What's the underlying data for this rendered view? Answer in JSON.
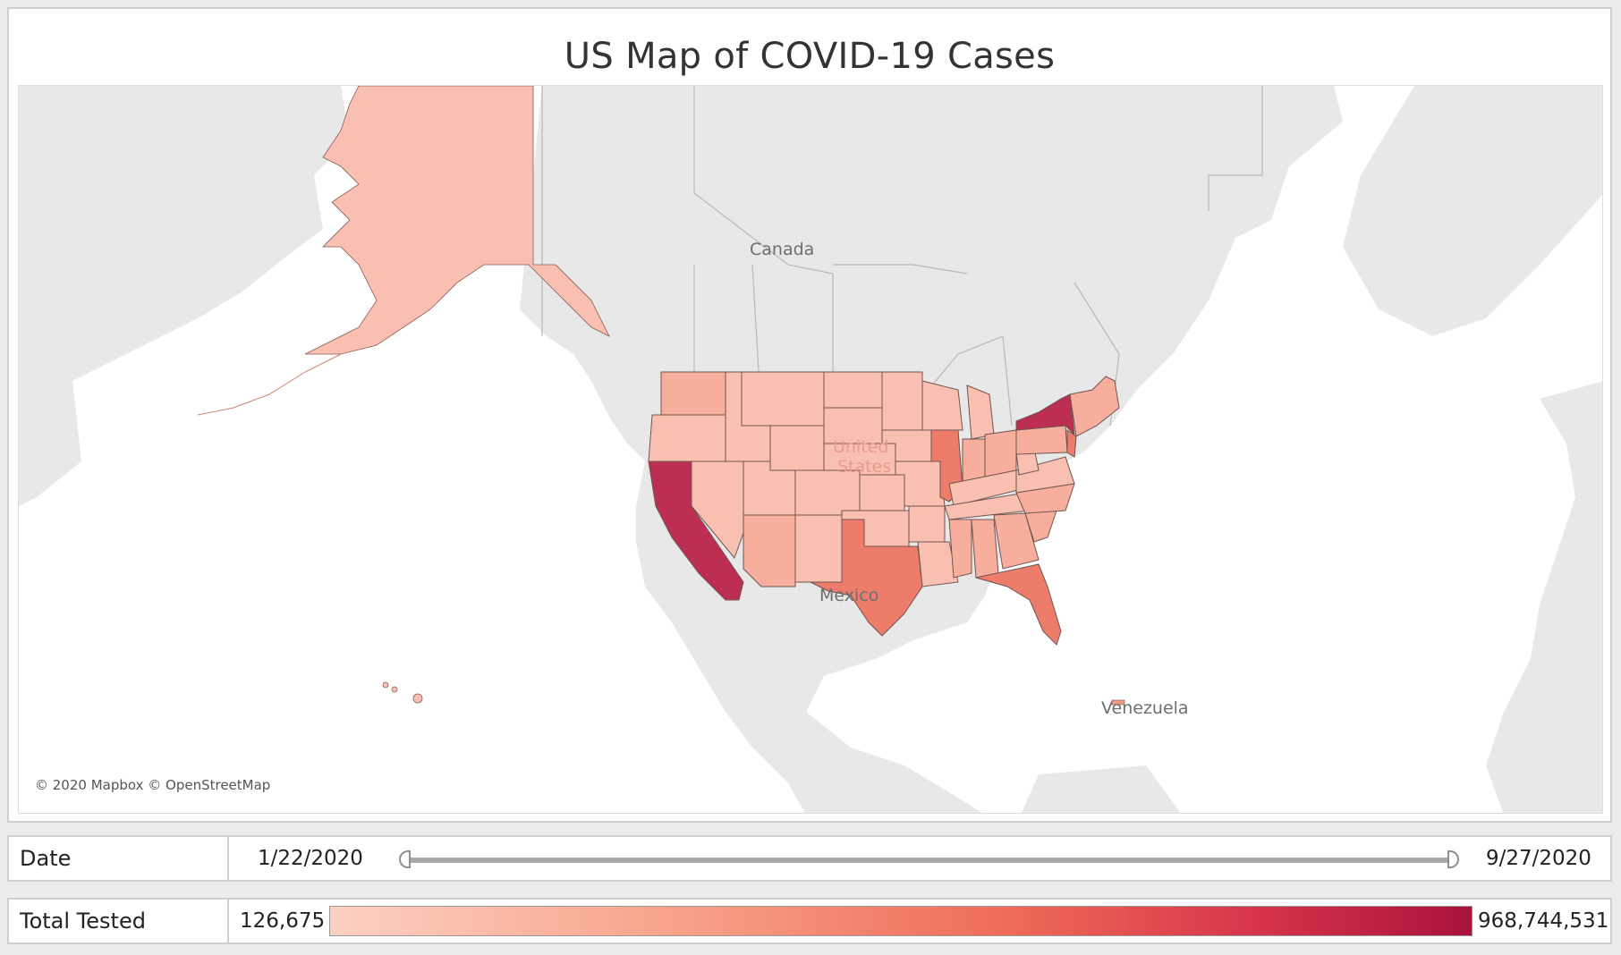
{
  "title": "US Map of COVID-19 Cases",
  "map": {
    "attribution": "© 2020 Mapbox © OpenStreetMap",
    "labels": {
      "canada": "Canada",
      "united_states_line1": "United",
      "united_states_line2": "States",
      "mexico": "Mexico",
      "venezuela": "Venezuela"
    },
    "colors": {
      "ocean": "#ffffff",
      "land": "#e8e8e8",
      "border": "#b8b8b8",
      "state_low": "#f9c0b2",
      "state_mid": "#f49a86",
      "state_high": "#ee7c6a",
      "state_highest": "#bc2f52",
      "state_outline": "#8a5a55"
    }
  },
  "filters": {
    "date": {
      "label": "Date",
      "start": "1/22/2020",
      "end": "9/27/2020"
    },
    "total_tested": {
      "label": "Total Tested",
      "min": "126,675",
      "max": "968,744,531",
      "gradient_start": "#fbd0c2",
      "gradient_end": "#a8133c"
    }
  }
}
